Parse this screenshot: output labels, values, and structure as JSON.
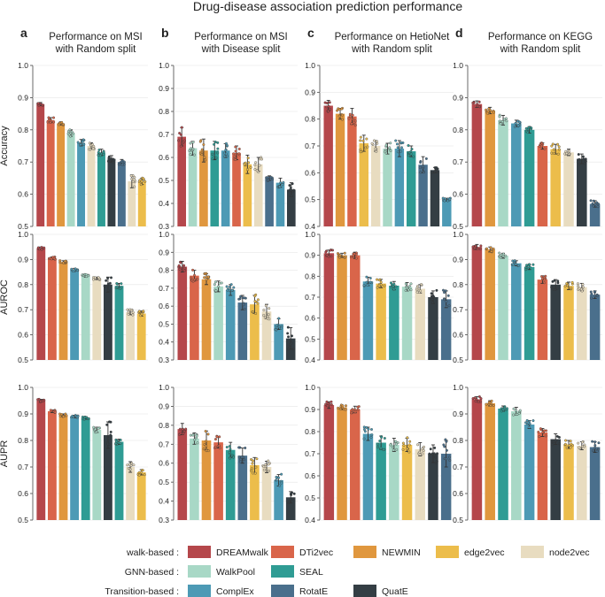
{
  "title": "Drug-disease association prediction performance",
  "colors": {
    "DREAMwalk": "#b5474b",
    "DTi2vec": "#d9654a",
    "NEWMIN": "#e0973e",
    "edge2vec": "#ecbd4b",
    "node2vec": "#e8dcc0",
    "WalkPool": "#a8d8c6",
    "SEAL": "#2f9c94",
    "ComplEx": "#4d9ab5",
    "RotatE": "#4a6f8c",
    "QuatE": "#343e44"
  },
  "panels": [
    {
      "letter": "a",
      "title1": "Performance on MSI",
      "title2": "with Random split"
    },
    {
      "letter": "b",
      "title1": "Performance on MSI",
      "title2": "with Disease split"
    },
    {
      "letter": "c",
      "title1": "Performance on HetioNet",
      "title2": "with Random split"
    },
    {
      "letter": "d",
      "title1": "Performance on KEGG",
      "title2": "with Random split"
    }
  ],
  "row_labels": [
    "Accuracy",
    "AUROC",
    "AUPR"
  ],
  "legend": {
    "groups": [
      {
        "label": "walk-based :",
        "items": [
          "DREAMwalk",
          "DTi2vec",
          "NEWMIN",
          "edge2vec",
          "node2vec"
        ]
      },
      {
        "label": "GNN-based :",
        "items": [
          "WalkPool",
          "SEAL"
        ]
      },
      {
        "label": "Transition-based :",
        "items": [
          "ComplEx",
          "RotatE",
          "QuatE"
        ]
      }
    ]
  },
  "chart_data": [
    {
      "type": "bar",
      "row": "Accuracy",
      "panel": "a",
      "ylim": [
        0.5,
        1.0
      ],
      "yticks": [
        "0.5",
        "0.6",
        "0.7",
        "0.8",
        "0.9",
        "1.0"
      ],
      "categories": [
        "DREAMwalk",
        "DTi2vec",
        "NEWMIN",
        "WalkPool",
        "ComplEx",
        "node2vec",
        "SEAL",
        "QuatE",
        "RotatE",
        "node2vec",
        "edge2vec"
      ],
      "values": [
        0.88,
        0.83,
        0.82,
        0.79,
        0.76,
        0.75,
        0.73,
        0.71,
        0.7,
        0.64,
        0.64
      ],
      "errors": [
        0.005,
        0.008,
        0.005,
        0.01,
        0.01,
        0.01,
        0.01,
        0.01,
        0.008,
        0.02,
        0.01
      ]
    },
    {
      "type": "bar",
      "row": "Accuracy",
      "panel": "b",
      "ylim": [
        0.3,
        1.0
      ],
      "yticks": [
        "0.3",
        "0.4",
        "0.5",
        "0.6",
        "0.7",
        "0.8",
        "0.9",
        "1.0"
      ],
      "categories": [
        "DREAMwalk",
        "WalkPool",
        "NEWMIN",
        "SEAL",
        "ComplEx",
        "DTi2vec",
        "edge2vec",
        "node2vec",
        "RotatE",
        "ComplEx",
        "QuatE"
      ],
      "values": [
        0.69,
        0.64,
        0.63,
        0.63,
        0.63,
        0.62,
        0.57,
        0.57,
        0.51,
        0.49,
        0.46
      ],
      "errors": [
        0.04,
        0.03,
        0.05,
        0.04,
        0.03,
        0.03,
        0.04,
        0.03,
        0.01,
        0.02,
        0.03
      ]
    },
    {
      "type": "bar",
      "row": "Accuracy",
      "panel": "c",
      "ylim": [
        0.4,
        1.0
      ],
      "yticks": [
        "0.4",
        "0.5",
        "0.6",
        "0.7",
        "0.8",
        "0.9",
        "1.0"
      ],
      "categories": [
        "DREAMwalk",
        "NEWMIN",
        "DTi2vec",
        "edge2vec",
        "node2vec",
        "WalkPool",
        "ComplEx",
        "SEAL",
        "RotatE",
        "QuatE",
        "ComplEx"
      ],
      "values": [
        0.85,
        0.82,
        0.81,
        0.71,
        0.7,
        0.69,
        0.69,
        0.68,
        0.63,
        0.61,
        0.5
      ],
      "errors": [
        0.02,
        0.02,
        0.03,
        0.03,
        0.02,
        0.02,
        0.03,
        0.02,
        0.03,
        0.01,
        0.005
      ]
    },
    {
      "type": "bar",
      "row": "Accuracy",
      "panel": "d",
      "ylim": [
        0.5,
        1.0
      ],
      "yticks": [
        "0.5",
        "0.6",
        "0.7",
        "0.8",
        "0.9",
        "1.0"
      ],
      "categories": [
        "DREAMwalk",
        "NEWMIN",
        "WalkPool",
        "ComplEx",
        "SEAL",
        "DTi2vec",
        "edge2vec",
        "node2vec",
        "QuatE",
        "RotatE"
      ],
      "values": [
        0.88,
        0.86,
        0.83,
        0.82,
        0.8,
        0.75,
        0.74,
        0.73,
        0.71,
        0.57
      ],
      "errors": [
        0.01,
        0.01,
        0.015,
        0.01,
        0.01,
        0.01,
        0.015,
        0.01,
        0.015,
        0.01
      ]
    },
    {
      "type": "bar",
      "row": "AUROC",
      "panel": "a",
      "ylim": [
        0.5,
        1.0
      ],
      "yticks": [
        "0.5",
        "0.6",
        "0.7",
        "0.8",
        "0.9",
        "1.0"
      ],
      "categories": [
        "DREAMwalk",
        "DTi2vec",
        "NEWMIN",
        "ComplEx",
        "WalkPool",
        "node2vec",
        "QuatE",
        "SEAL",
        "node2vec",
        "edge2vec"
      ],
      "values": [
        0.945,
        0.905,
        0.89,
        0.86,
        0.835,
        0.825,
        0.8,
        0.795,
        0.69,
        0.685
      ],
      "errors": [
        0.005,
        0.005,
        0.005,
        0.005,
        0.005,
        0.005,
        0.03,
        0.01,
        0.01,
        0.01
      ]
    },
    {
      "type": "bar",
      "row": "AUROC",
      "panel": "b",
      "ylim": [
        0.3,
        1.0
      ],
      "yticks": [
        "0.3",
        "0.4",
        "0.5",
        "0.6",
        "0.7",
        "0.8",
        "0.9",
        "1.0"
      ],
      "categories": [
        "DREAMwalk",
        "DTi2vec",
        "NEWMIN",
        "WalkPool",
        "ComplEx",
        "RotatE",
        "edge2vec",
        "node2vec",
        "ComplEx",
        "QuatE"
      ],
      "values": [
        0.82,
        0.77,
        0.75,
        0.71,
        0.69,
        0.62,
        0.61,
        0.57,
        0.5,
        0.42
      ],
      "errors": [
        0.03,
        0.03,
        0.03,
        0.03,
        0.03,
        0.04,
        0.05,
        0.04,
        0.03,
        0.06
      ]
    },
    {
      "type": "bar",
      "row": "AUROC",
      "panel": "c",
      "ylim": [
        0.4,
        1.0
      ],
      "yticks": [
        "0.4",
        "0.5",
        "0.6",
        "0.7",
        "0.8",
        "0.9",
        "1.0"
      ],
      "categories": [
        "DREAMwalk",
        "NEWMIN",
        "DTi2vec",
        "ComplEx",
        "edge2vec",
        "SEAL",
        "WalkPool",
        "node2vec",
        "QuatE",
        "RotatE"
      ],
      "values": [
        0.91,
        0.9,
        0.9,
        0.775,
        0.765,
        0.755,
        0.75,
        0.74,
        0.7,
        0.69
      ],
      "errors": [
        0.015,
        0.01,
        0.015,
        0.02,
        0.02,
        0.02,
        0.02,
        0.02,
        0.03,
        0.04
      ]
    },
    {
      "type": "bar",
      "row": "AUROC",
      "panel": "d",
      "ylim": [
        0.5,
        1.0
      ],
      "yticks": [
        "0.5",
        "0.6",
        "0.7",
        "0.8",
        "0.9",
        "1.0"
      ],
      "categories": [
        "DREAMwalk",
        "NEWMIN",
        "WalkPool",
        "ComplEx",
        "SEAL",
        "DTi2vec",
        "QuatE",
        "edge2vec",
        "node2vec",
        "RotatE"
      ],
      "values": [
        0.95,
        0.94,
        0.915,
        0.885,
        0.87,
        0.82,
        0.8,
        0.795,
        0.79,
        0.76
      ],
      "errors": [
        0.01,
        0.01,
        0.01,
        0.01,
        0.01,
        0.015,
        0.02,
        0.015,
        0.015,
        0.015
      ]
    },
    {
      "type": "bar",
      "row": "AUPR",
      "panel": "a",
      "ylim": [
        0.5,
        1.0
      ],
      "yticks": [
        "0.5",
        "0.6",
        "0.7",
        "0.8",
        "0.9",
        "1.0"
      ],
      "categories": [
        "DREAMwalk",
        "DTi2vec",
        "NEWMIN",
        "ComplEx",
        "SEAL",
        "WalkPool",
        "QuatE",
        "SEAL",
        "node2vec",
        "edge2vec"
      ],
      "values": [
        0.95,
        0.91,
        0.895,
        0.89,
        0.885,
        0.84,
        0.82,
        0.795,
        0.7,
        0.68
      ],
      "errors": [
        0.005,
        0.005,
        0.005,
        0.005,
        0.005,
        0.01,
        0.05,
        0.01,
        0.02,
        0.01
      ]
    },
    {
      "type": "bar",
      "row": "AUPR",
      "panel": "b",
      "ylim": [
        0.3,
        1.0
      ],
      "yticks": [
        "0.3",
        "0.4",
        "0.5",
        "0.6",
        "0.7",
        "0.8",
        "0.9",
        "1.0"
      ],
      "categories": [
        "DREAMwalk",
        "WalkPool",
        "NEWMIN",
        "DTi2vec",
        "SEAL",
        "RotatE",
        "edge2vec",
        "node2vec",
        "ComplEx",
        "QuatE"
      ],
      "values": [
        0.78,
        0.73,
        0.72,
        0.71,
        0.67,
        0.64,
        0.59,
        0.58,
        0.51,
        0.42
      ],
      "errors": [
        0.03,
        0.03,
        0.05,
        0.03,
        0.04,
        0.04,
        0.04,
        0.03,
        0.03,
        0.03
      ]
    },
    {
      "type": "bar",
      "row": "AUPR",
      "panel": "c",
      "ylim": [
        0.4,
        1.0
      ],
      "yticks": [
        "0.4",
        "0.5",
        "0.6",
        "0.7",
        "0.8",
        "0.9",
        "1.0"
      ],
      "categories": [
        "DREAMwalk",
        "NEWMIN",
        "DTi2vec",
        "ComplEx",
        "SEAL",
        "WalkPool",
        "edge2vec",
        "node2vec",
        "QuatE",
        "RotatE"
      ],
      "values": [
        0.92,
        0.91,
        0.9,
        0.79,
        0.75,
        0.74,
        0.74,
        0.72,
        0.7,
        0.7
      ],
      "errors": [
        0.015,
        0.01,
        0.015,
        0.03,
        0.03,
        0.03,
        0.03,
        0.03,
        0.04,
        0.06
      ]
    },
    {
      "type": "bar",
      "row": "AUPR",
      "panel": "d",
      "ylim": [
        0.5,
        1.0
      ],
      "yticks": [
        "0.5",
        "0.6",
        "0.7",
        "0.8",
        "0.9",
        "1.0"
      ],
      "categories": [
        "DREAMwalk",
        "NEWMIN",
        "SEAL",
        "WalkPool",
        "ComplEx",
        "DTi2vec",
        "QuatE",
        "edge2vec",
        "node2vec",
        "RotatE"
      ],
      "values": [
        0.955,
        0.94,
        0.92,
        0.91,
        0.86,
        0.83,
        0.805,
        0.785,
        0.78,
        0.775
      ],
      "errors": [
        0.01,
        0.01,
        0.01,
        0.015,
        0.015,
        0.015,
        0.02,
        0.015,
        0.015,
        0.02
      ]
    }
  ]
}
